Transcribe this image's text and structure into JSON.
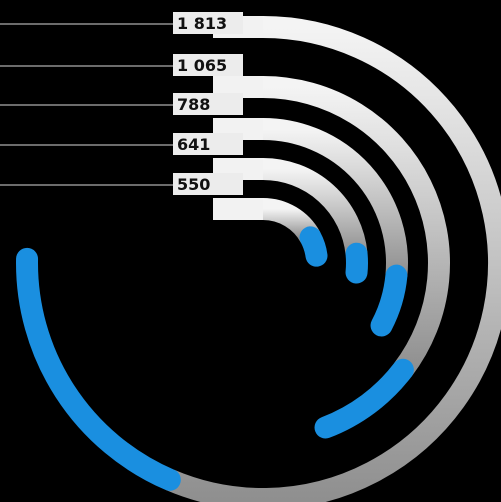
{
  "chart_data": {
    "type": "radial-bar",
    "series": [
      {
        "label": "1 813",
        "total": 1813
      },
      {
        "label": "1 065",
        "total": 1065
      },
      {
        "label": "788",
        "total": 788
      },
      {
        "label": "641",
        "total": 641
      },
      {
        "label": "550",
        "total": 550
      }
    ],
    "highlight_fraction": [
      0.25,
      0.2,
      0.19,
      0.12,
      0.25
    ],
    "colors": {
      "background": "#000000",
      "track": "#c8c8c8",
      "track_light": "#f2f2f2",
      "highlight": "#1a8fe0",
      "highlight_dark": "#0b5fb0",
      "label_bg": "#ececec",
      "label_text": "#111111",
      "leader_line": "#d8d8d8"
    }
  }
}
